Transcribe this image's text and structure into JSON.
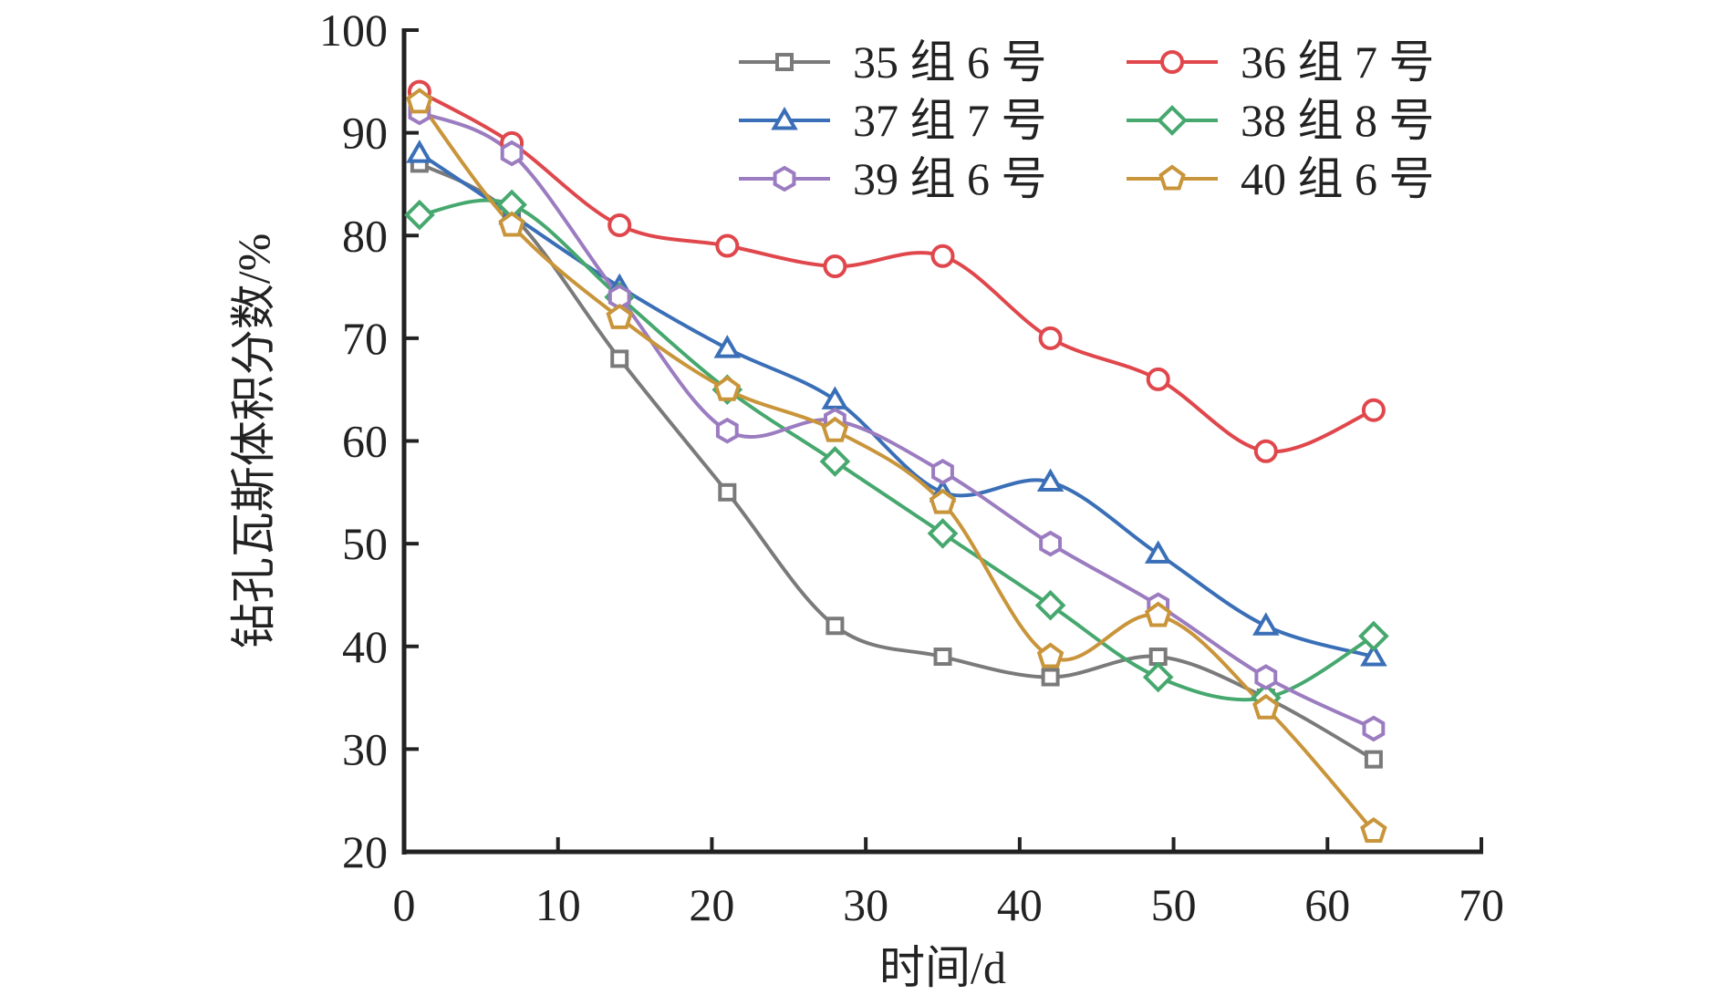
{
  "chart_data": {
    "type": "line",
    "title": "",
    "xlabel": "时间/d",
    "ylabel": "钻孔瓦斯体积分数/%",
    "xlim": [
      0,
      70
    ],
    "ylim": [
      20,
      100
    ],
    "xticks": [
      0,
      10,
      20,
      30,
      40,
      50,
      60,
      70
    ],
    "yticks": [
      20,
      30,
      40,
      50,
      60,
      70,
      80,
      90,
      100
    ],
    "grid": false,
    "legend_position": "top-right",
    "x": [
      1,
      7,
      14,
      21,
      28,
      35,
      42,
      49,
      56,
      63
    ],
    "series": [
      {
        "name": "35 组 6 号",
        "color": "#7a7a7a",
        "marker": "square",
        "values": [
          87,
          82,
          68,
          55,
          42,
          39,
          37,
          39,
          35,
          29
        ]
      },
      {
        "name": "36 组 7 号",
        "color": "#e0474c",
        "marker": "circle",
        "values": [
          94,
          89,
          81,
          79,
          77,
          78,
          70,
          66,
          59,
          63
        ]
      },
      {
        "name": "37 组 7 号",
        "color": "#3a6fb7",
        "marker": "triangle",
        "values": [
          88,
          82,
          75,
          69,
          64,
          55,
          56,
          49,
          42,
          39
        ]
      },
      {
        "name": "38 组 8 号",
        "color": "#46a86e",
        "marker": "diamond",
        "values": [
          82,
          83,
          74,
          65,
          58,
          51,
          44,
          37,
          35,
          41
        ]
      },
      {
        "name": "39 组 6 号",
        "color": "#9b7cc0",
        "marker": "hexagon",
        "values": [
          92,
          88,
          74,
          61,
          62,
          57,
          50,
          44,
          37,
          32
        ]
      },
      {
        "name": "40 组 6 号",
        "color": "#c9953a",
        "marker": "pentagon",
        "values": [
          93,
          81,
          72,
          65,
          61,
          54,
          39,
          43,
          34,
          22
        ]
      }
    ]
  }
}
